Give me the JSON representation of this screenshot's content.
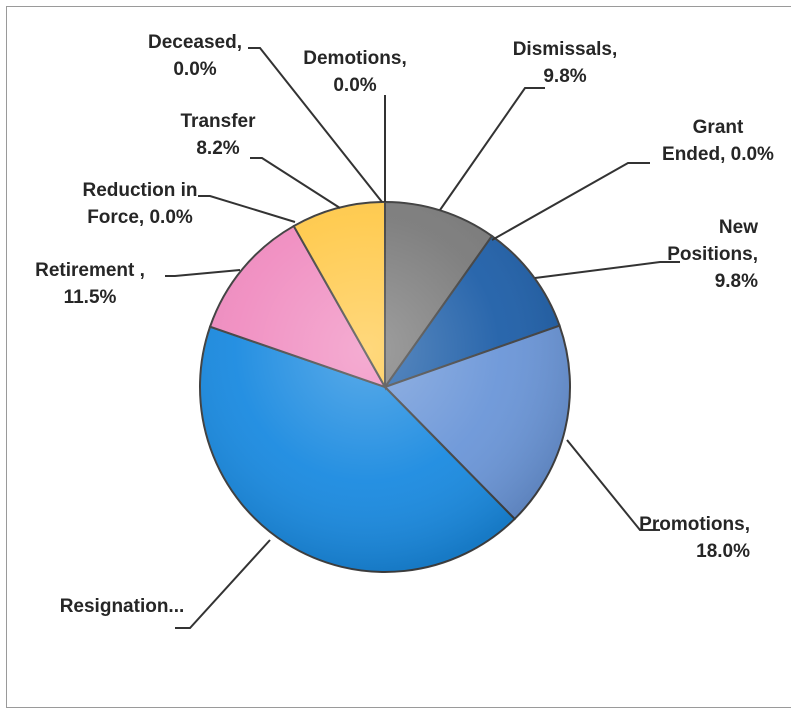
{
  "chart_data": {
    "type": "pie",
    "slices": [
      {
        "key": "dismissals",
        "name": "Dismissals",
        "value": 9.8,
        "color": "#7a7a7a",
        "label_lines": [
          "Dismissals,",
          "9.8%"
        ]
      },
      {
        "key": "grant",
        "name": "Grant Ended",
        "value": 0.0,
        "color": "#1f4e79",
        "label_lines": [
          "Grant",
          "Ended, 0.0%"
        ]
      },
      {
        "key": "newpos",
        "name": "New Positions",
        "value": 9.8,
        "color": "#1f5fa8",
        "label_lines": [
          "New",
          "Positions,",
          "9.8%"
        ]
      },
      {
        "key": "promotions",
        "name": "Promotions",
        "value": 18.0,
        "color": "#6b96d8",
        "label_lines": [
          "Promotions,",
          "18.0%"
        ]
      },
      {
        "key": "resignation",
        "name": "Resignation",
        "value": 42.6,
        "color": "#1a8ae0",
        "label_lines": [
          "Resignation..."
        ]
      },
      {
        "key": "retirement",
        "name": "Retirement",
        "value": 11.5,
        "color": "#f08cc0",
        "label_lines": [
          "Retirement ,",
          "11.5%"
        ]
      },
      {
        "key": "rif",
        "name": "Reduction in Force",
        "value": 0.0,
        "color": "#d9d9d9",
        "label_lines": [
          "Reduction in",
          "Force, 0.0%"
        ]
      },
      {
        "key": "transfer",
        "name": "Transfer",
        "value": 8.2,
        "color": "#ffc94a",
        "label_lines": [
          "Transfer",
          "8.2%"
        ]
      },
      {
        "key": "deceased",
        "name": "Deceased",
        "value": 0.0,
        "color": "#a0a0a0",
        "label_lines": [
          "Deceased,",
          "0.0%"
        ]
      },
      {
        "key": "demotions",
        "name": "Demotions",
        "value": 0.0,
        "color": "#c0c0c0",
        "label_lines": [
          "Demotions,",
          "0.0%"
        ]
      }
    ]
  }
}
